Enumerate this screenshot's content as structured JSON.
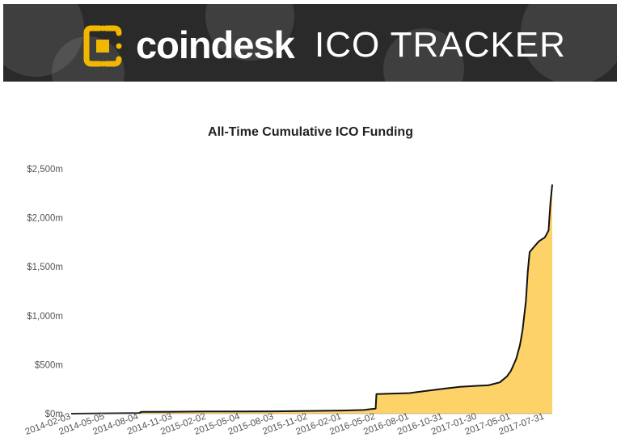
{
  "banner": {
    "brand": "coindesk",
    "product": "ICO TRACKER"
  },
  "colors": {
    "banner_bg": "#2a2a2a",
    "logo_gold": "#f2b701",
    "area_fill": "#fdd268",
    "line": "#111111"
  },
  "chart_data": {
    "type": "area",
    "title": "All-Time Cumulative ICO Funding",
    "xlabel": "",
    "ylabel": "",
    "ylim": [
      0,
      2500
    ],
    "y_ticks": [
      "$0m",
      "$500m",
      "$1,000m",
      "$1,500m",
      "$2,000m",
      "$2,500m"
    ],
    "y_tick_values": [
      0,
      500,
      1000,
      1500,
      2000,
      2500
    ],
    "x_ticks": [
      "2014-02-03",
      "2014-05-05",
      "2014-08-04",
      "2014-11-03",
      "2015-02-02",
      "2015-05-04",
      "2015-08-03",
      "2015-11-02",
      "2016-02-01",
      "2016-05-02",
      "2016-08-01",
      "2016-10-31",
      "2017-01-30",
      "2017-05-01",
      "2017-07-31"
    ],
    "grid": false,
    "series": [
      {
        "unit": "$m",
        "points": [
          [
            "2014-02-03",
            0
          ],
          [
            "2014-05-05",
            3
          ],
          [
            "2014-08-04",
            6
          ],
          [
            "2014-08-11",
            18
          ],
          [
            "2014-11-03",
            20
          ],
          [
            "2015-02-02",
            22
          ],
          [
            "2015-05-04",
            22
          ],
          [
            "2015-08-03",
            24
          ],
          [
            "2015-11-02",
            28
          ],
          [
            "2016-02-01",
            32
          ],
          [
            "2016-04-01",
            38
          ],
          [
            "2016-04-20",
            48
          ],
          [
            "2016-05-02",
            52
          ],
          [
            "2016-05-04",
            200
          ],
          [
            "2016-08-01",
            210
          ],
          [
            "2016-10-31",
            255
          ],
          [
            "2016-12-15",
            275
          ],
          [
            "2017-01-30",
            285
          ],
          [
            "2017-03-01",
            290
          ],
          [
            "2017-04-01",
            320
          ],
          [
            "2017-04-20",
            380
          ],
          [
            "2017-05-01",
            440
          ],
          [
            "2017-05-15",
            560
          ],
          [
            "2017-05-25",
            700
          ],
          [
            "2017-06-01",
            850
          ],
          [
            "2017-06-10",
            1150
          ],
          [
            "2017-06-15",
            1450
          ],
          [
            "2017-06-20",
            1650
          ],
          [
            "2017-07-01",
            1700
          ],
          [
            "2017-07-15",
            1760
          ],
          [
            "2017-07-31",
            1800
          ],
          [
            "2017-08-10",
            1870
          ],
          [
            "2017-08-15",
            2150
          ],
          [
            "2017-08-20",
            2340
          ]
        ]
      }
    ]
  }
}
